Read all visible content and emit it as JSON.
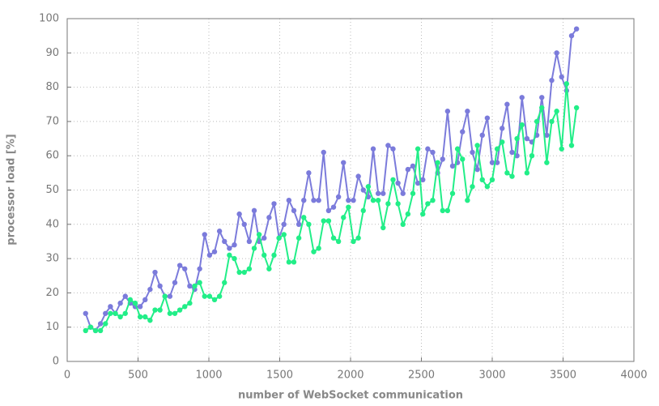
{
  "chart_data": {
    "type": "line",
    "xlabel": "number of WebSocket communication",
    "ylabel": "processor load [%]",
    "x": [
      130,
      165,
      200,
      235,
      270,
      305,
      340,
      375,
      410,
      445,
      480,
      515,
      550,
      585,
      620,
      655,
      690,
      725,
      760,
      795,
      830,
      865,
      900,
      935,
      970,
      1005,
      1040,
      1075,
      1110,
      1145,
      1180,
      1215,
      1250,
      1285,
      1320,
      1355,
      1390,
      1425,
      1460,
      1495,
      1530,
      1565,
      1600,
      1635,
      1670,
      1705,
      1740,
      1775,
      1810,
      1845,
      1880,
      1915,
      1950,
      1985,
      2020,
      2055,
      2090,
      2125,
      2160,
      2195,
      2230,
      2265,
      2300,
      2335,
      2370,
      2405,
      2440,
      2475,
      2510,
      2545,
      2580,
      2615,
      2650,
      2685,
      2720,
      2755,
      2790,
      2825,
      2860,
      2895,
      2930,
      2965,
      3000,
      3035,
      3070,
      3105,
      3140,
      3175,
      3210,
      3245,
      3280,
      3315,
      3350,
      3385,
      3420,
      3455,
      3490,
      3525,
      3560,
      3595
    ],
    "series": [
      {
        "color": "#7b7bdb",
        "values": [
          14,
          10,
          9,
          11,
          14,
          16,
          14,
          17,
          19,
          17,
          16,
          16,
          18,
          21,
          26,
          22,
          19,
          19,
          23,
          28,
          27,
          22,
          21,
          27,
          37,
          31,
          32,
          38,
          35,
          33,
          34,
          43,
          40,
          35,
          44,
          35,
          36,
          42,
          46,
          36,
          40,
          47,
          44,
          40,
          47,
          55,
          47,
          47,
          61,
          44,
          45,
          48,
          58,
          47,
          47,
          54,
          50,
          48,
          62,
          49,
          49,
          63,
          62,
          52,
          49,
          56,
          57,
          52,
          53,
          62,
          61,
          55,
          59,
          73,
          57,
          58,
          67,
          73,
          61,
          56,
          66,
          71,
          58,
          58,
          68,
          75,
          61,
          60,
          77,
          65,
          64,
          66,
          77,
          66,
          82,
          90,
          83,
          79,
          95,
          97
        ]
      },
      {
        "color": "#22ee88",
        "values": [
          9,
          10,
          9,
          9,
          11,
          14,
          14,
          13,
          14,
          18,
          17,
          13,
          13,
          12,
          15,
          15,
          19,
          14,
          14,
          15,
          16,
          17,
          22,
          23,
          19,
          19,
          18,
          19,
          23,
          31,
          30,
          26,
          26,
          27,
          33,
          37,
          31,
          27,
          31,
          36,
          37,
          29,
          29,
          36,
          42,
          40,
          32,
          33,
          41,
          41,
          36,
          35,
          42,
          45,
          35,
          36,
          44,
          51,
          47,
          47,
          39,
          46,
          53,
          46,
          40,
          43,
          49,
          62,
          43,
          46,
          47,
          58,
          44,
          44,
          49,
          62,
          59,
          47,
          51,
          63,
          53,
          51,
          53,
          62,
          64,
          55,
          54,
          65,
          69,
          55,
          60,
          70,
          74,
          58,
          70,
          73,
          62,
          81,
          63,
          74
        ]
      }
    ],
    "xlim": [
      0,
      4000
    ],
    "xticks": [
      0,
      500,
      1000,
      1500,
      2000,
      2500,
      3000,
      3500,
      4000
    ],
    "ylim": [
      0,
      100
    ],
    "yticks": [
      0,
      10,
      20,
      30,
      40,
      50,
      60,
      70,
      80,
      90,
      100
    ],
    "grid": true
  }
}
